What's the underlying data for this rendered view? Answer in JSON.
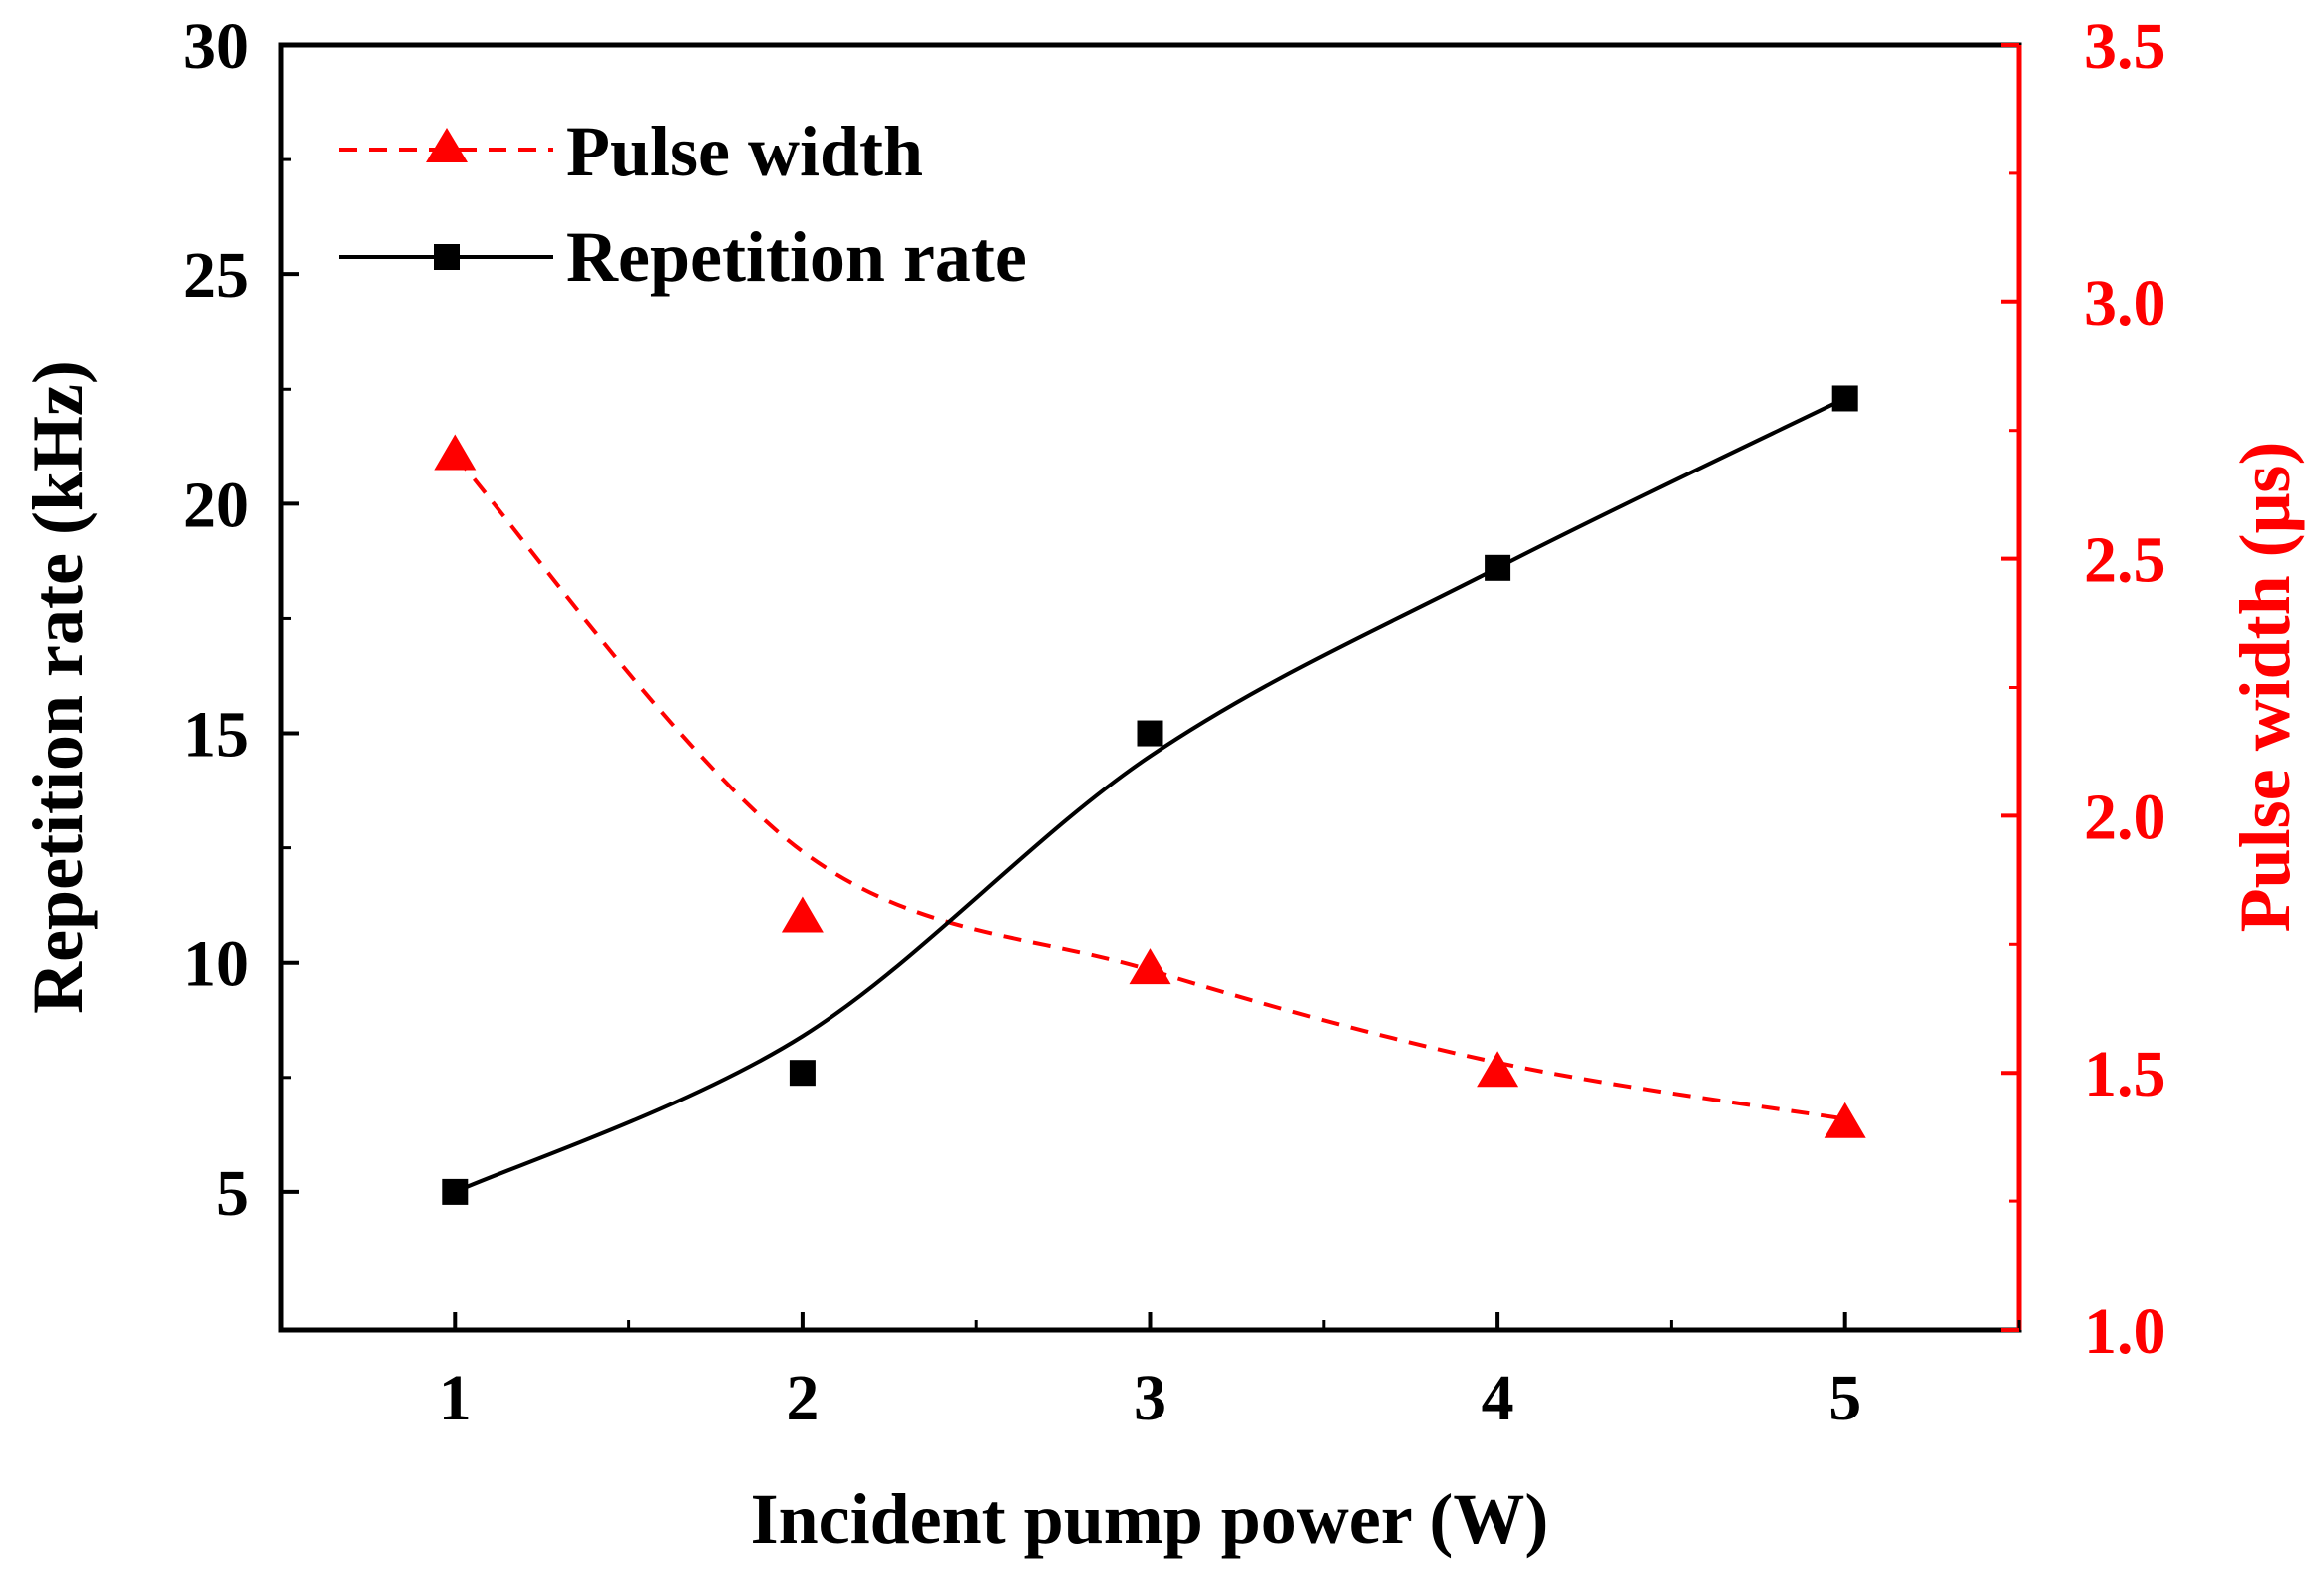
{
  "chart_data": {
    "type": "line",
    "x": [
      1,
      2,
      3,
      4,
      5
    ],
    "xlabel": "Incident pump power (W)",
    "xlim": [
      0.5,
      5.5
    ],
    "xticks": [
      "1",
      "2",
      "3",
      "4",
      "5"
    ],
    "ylabel": "Repetition rate (kHz)",
    "ylim": [
      2,
      30
    ],
    "yticks": [
      "5",
      "10",
      "15",
      "20",
      "25",
      "30"
    ],
    "y2label": "Pulse width (μs)",
    "y2lim": [
      1.0,
      3.5
    ],
    "y2ticks": [
      "1.0",
      "1.5",
      "2.0",
      "2.5",
      "3.0",
      "3.5"
    ],
    "legend_position": "top-left",
    "series": [
      {
        "name": "Pulse width",
        "axis": "right",
        "marker": "triangle",
        "line_style": "dashed",
        "color": "#ff0000",
        "values": [
          2.7,
          1.8,
          1.7,
          1.5,
          1.4
        ],
        "fit": [
          2.7,
          1.93,
          1.7,
          1.52,
          1.41
        ]
      },
      {
        "name": "Repetition rate",
        "axis": "left",
        "marker": "square",
        "line_style": "solid",
        "color": "#000000",
        "values": [
          5.0,
          7.6,
          15.0,
          18.6,
          22.3
        ],
        "fit": [
          5.0,
          8.4,
          14.5,
          18.6,
          22.3
        ]
      }
    ]
  }
}
